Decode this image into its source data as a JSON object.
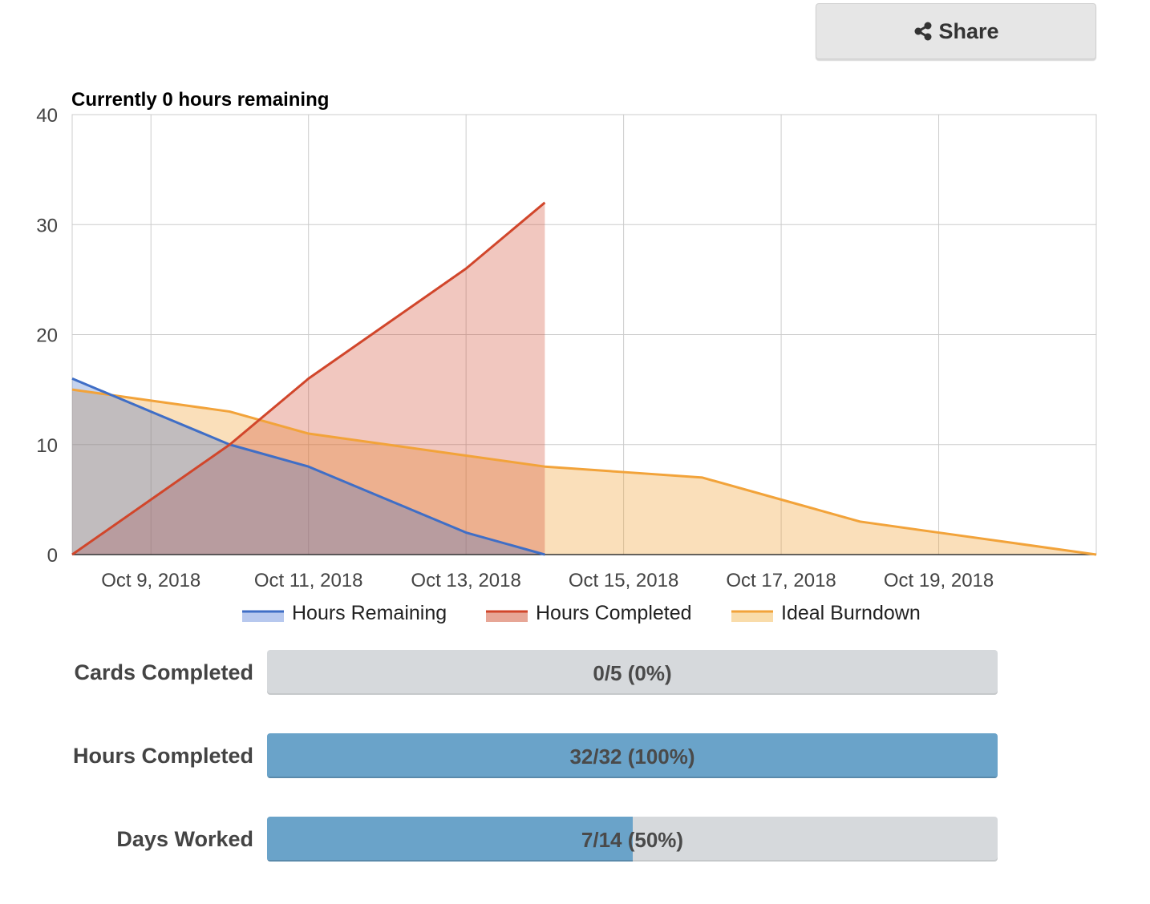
{
  "share": {
    "label": "Share",
    "icon": "share-icon"
  },
  "chart_data": {
    "type": "area",
    "title": "Currently 0 hours remaining",
    "xlabel": "",
    "ylabel": "",
    "x_range": [
      "2018-10-08",
      "2018-10-21"
    ],
    "ylim": [
      0,
      40
    ],
    "y_ticks": [
      0,
      10,
      20,
      30,
      40
    ],
    "x_ticks": [
      "2018-10-09",
      "2018-10-11",
      "2018-10-13",
      "2018-10-15",
      "2018-10-17",
      "2018-10-19"
    ],
    "x_tick_labels": [
      "Oct 9, 2018",
      "Oct 11, 2018",
      "Oct 13, 2018",
      "Oct 15, 2018",
      "Oct 17, 2018",
      "Oct 19, 2018"
    ],
    "grid": true,
    "legend": "bottom",
    "series": [
      {
        "name": "Hours Remaining",
        "color": "#3f6ec6",
        "fill": "#b7c8ee",
        "points": [
          [
            "2018-10-08",
            16
          ],
          [
            "2018-10-09",
            13
          ],
          [
            "2018-10-10",
            10
          ],
          [
            "2018-10-11",
            8
          ],
          [
            "2018-10-12",
            5
          ],
          [
            "2018-10-13",
            2
          ],
          [
            "2018-10-14",
            0
          ]
        ]
      },
      {
        "name": "Hours Completed",
        "color": "#d1462b",
        "fill": "#e7a696",
        "points": [
          [
            "2018-10-08",
            0
          ],
          [
            "2018-10-09",
            5
          ],
          [
            "2018-10-10",
            10
          ],
          [
            "2018-10-11",
            16
          ],
          [
            "2018-10-12",
            21
          ],
          [
            "2018-10-13",
            26
          ],
          [
            "2018-10-14",
            32
          ]
        ]
      },
      {
        "name": "Ideal Burndown",
        "color": "#f2a33a",
        "fill": "#f9dcaa",
        "points": [
          [
            "2018-10-08",
            15
          ],
          [
            "2018-10-09",
            14
          ],
          [
            "2018-10-10",
            13
          ],
          [
            "2018-10-11",
            11
          ],
          [
            "2018-10-12",
            10
          ],
          [
            "2018-10-13",
            9
          ],
          [
            "2018-10-14",
            8
          ],
          [
            "2018-10-15",
            7.5
          ],
          [
            "2018-10-16",
            7
          ],
          [
            "2018-10-17",
            5
          ],
          [
            "2018-10-18",
            3
          ],
          [
            "2018-10-19",
            2
          ],
          [
            "2018-10-20",
            1
          ],
          [
            "2018-10-21",
            0
          ]
        ]
      }
    ]
  },
  "progress": [
    {
      "label": "Cards Completed",
      "text": "0/5 (0%)",
      "fraction": 0
    },
    {
      "label": "Hours Completed",
      "text": "32/32 (100%)",
      "fraction": 1
    },
    {
      "label": "Days Worked",
      "text": "7/14 (50%)",
      "fraction": 0.5
    }
  ]
}
